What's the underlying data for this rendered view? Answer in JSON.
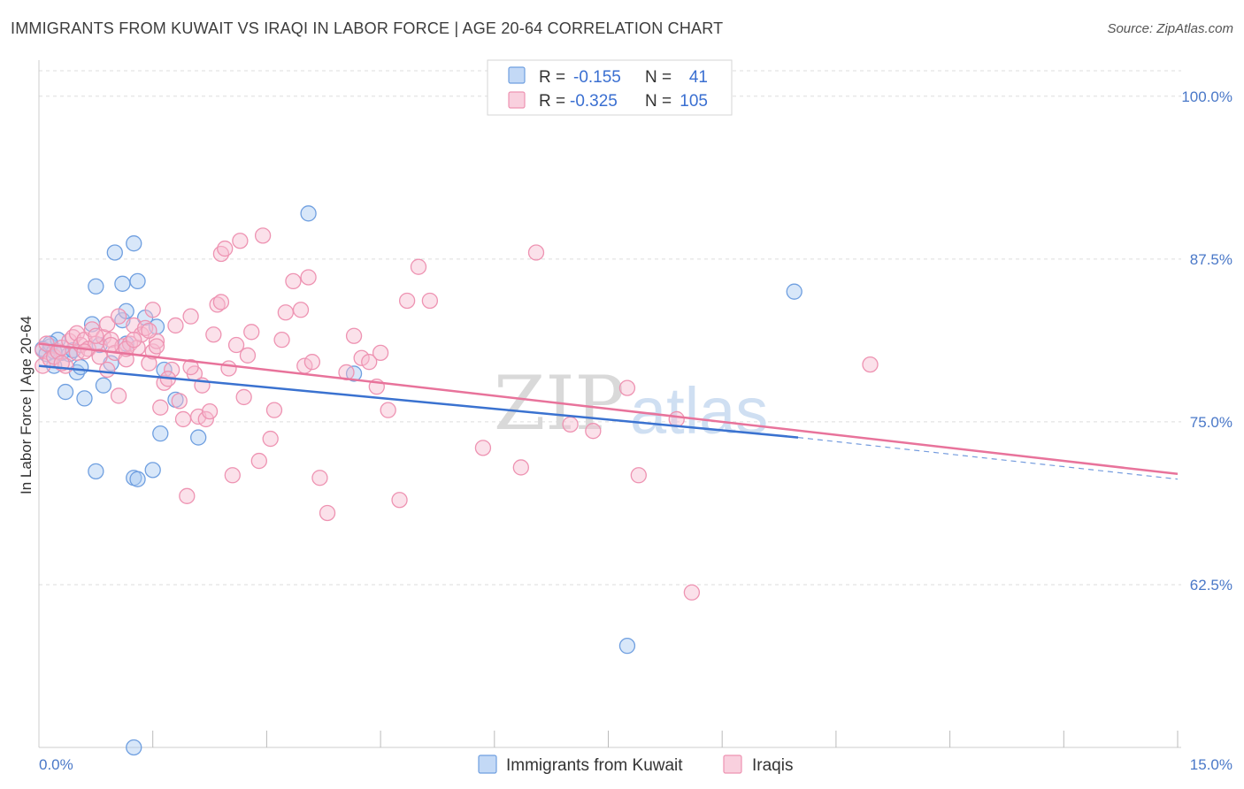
{
  "header": {
    "title": "IMMIGRANTS FROM KUWAIT VS IRAQI IN LABOR FORCE | AGE 20-64 CORRELATION CHART",
    "source": "Source: ZipAtlas.com"
  },
  "watermark": {
    "zip": "ZIP",
    "atlas": "atlas"
  },
  "legend_top": [
    {
      "r_label": "R =",
      "r_value": "-0.155",
      "n_label": "N =",
      "n_value": "41"
    },
    {
      "r_label": "R =",
      "r_value": "-0.325",
      "n_label": "N =",
      "n_value": "105"
    }
  ],
  "colors": {
    "kuwait_fill": "#a9c9f2",
    "kuwait_stroke": "#6f9fe0",
    "kuwait_line": "#3a72d0",
    "iraqi_fill": "#f7bcd0",
    "iraqi_stroke": "#ee93b2",
    "iraqi_line": "#e8739b",
    "grid": "#dddddd",
    "tick_text": "#4a78c8"
  },
  "chart_data": {
    "type": "scatter",
    "xlabel": "",
    "ylabel": "In Labor Force | Age 20-64",
    "xlim": [
      0,
      15
    ],
    "ylim": [
      50,
      102.5
    ],
    "x_tick_labels": [
      "0.0%",
      "15.0%"
    ],
    "y_ticks": [
      62.5,
      75.0,
      87.5,
      100.0
    ],
    "y_tick_labels": [
      "62.5%",
      "75.0%",
      "87.5%",
      "100.0%"
    ],
    "grid": true,
    "legend": "bottom-center",
    "series": [
      {
        "name": "Immigrants from Kuwait",
        "r": -0.155,
        "n": 41,
        "trend": {
          "x0": 0.0,
          "y0": 79.3,
          "x1": 10.0,
          "y1": 73.8,
          "dash_x1": 15.0,
          "dash_y1": 70.6
        },
        "points": [
          [
            0.05,
            80.6
          ],
          [
            0.1,
            80.2
          ],
          [
            0.15,
            80.8
          ],
          [
            0.2,
            79.3
          ],
          [
            0.25,
            81.3
          ],
          [
            0.3,
            80.3
          ],
          [
            0.35,
            77.3
          ],
          [
            0.4,
            80.2
          ],
          [
            0.45,
            80.5
          ],
          [
            0.5,
            78.8
          ],
          [
            0.55,
            79.2
          ],
          [
            0.6,
            76.8
          ],
          [
            0.7,
            82.5
          ],
          [
            0.75,
            71.2
          ],
          [
            0.75,
            85.4
          ],
          [
            0.8,
            80.9
          ],
          [
            0.85,
            77.8
          ],
          [
            0.95,
            79.5
          ],
          [
            1.0,
            88.0
          ],
          [
            1.1,
            85.6
          ],
          [
            1.1,
            82.8
          ],
          [
            1.15,
            83.5
          ],
          [
            1.15,
            81.0
          ],
          [
            1.25,
            70.7
          ],
          [
            1.25,
            88.7
          ],
          [
            1.3,
            70.6
          ],
          [
            1.3,
            85.8
          ],
          [
            1.4,
            83.0
          ],
          [
            1.5,
            71.3
          ],
          [
            1.55,
            82.3
          ],
          [
            1.6,
            74.1
          ],
          [
            1.65,
            79.0
          ],
          [
            1.8,
            76.7
          ],
          [
            2.1,
            73.8
          ],
          [
            3.55,
            91.0
          ],
          [
            4.15,
            78.7
          ],
          [
            7.75,
            57.8
          ],
          [
            9.95,
            85.0
          ],
          [
            1.25,
            50.0
          ],
          [
            0.15,
            81.0
          ],
          [
            0.2,
            80.4
          ]
        ]
      },
      {
        "name": "Iraqis",
        "r": -0.325,
        "n": 105,
        "trend": {
          "x0": 0.0,
          "y0": 81.0,
          "x1": 15.0,
          "y1": 71.0
        },
        "points": [
          [
            0.05,
            79.3
          ],
          [
            0.05,
            80.5
          ],
          [
            0.1,
            81.0
          ],
          [
            0.15,
            79.8
          ],
          [
            0.2,
            80.0
          ],
          [
            0.25,
            80.4
          ],
          [
            0.3,
            80.7
          ],
          [
            0.35,
            79.3
          ],
          [
            0.4,
            81.2
          ],
          [
            0.45,
            81.5
          ],
          [
            0.5,
            81.8
          ],
          [
            0.5,
            80.3
          ],
          [
            0.55,
            80.9
          ],
          [
            0.6,
            81.3
          ],
          [
            0.65,
            80.6
          ],
          [
            0.7,
            82.1
          ],
          [
            0.75,
            81.0
          ],
          [
            0.8,
            80.0
          ],
          [
            0.85,
            81.5
          ],
          [
            0.9,
            82.5
          ],
          [
            0.9,
            79.0
          ],
          [
            0.95,
            81.3
          ],
          [
            1.0,
            80.3
          ],
          [
            1.05,
            83.1
          ],
          [
            1.05,
            77.0
          ],
          [
            1.1,
            80.8
          ],
          [
            1.15,
            79.8
          ],
          [
            1.2,
            81.0
          ],
          [
            1.25,
            82.4
          ],
          [
            1.3,
            80.7
          ],
          [
            1.35,
            81.7
          ],
          [
            1.4,
            82.2
          ],
          [
            1.45,
            79.5
          ],
          [
            1.5,
            80.4
          ],
          [
            1.5,
            83.6
          ],
          [
            1.55,
            81.2
          ],
          [
            1.6,
            76.1
          ],
          [
            1.65,
            78.0
          ],
          [
            1.75,
            79.0
          ],
          [
            1.8,
            82.4
          ],
          [
            1.85,
            76.6
          ],
          [
            1.9,
            75.2
          ],
          [
            1.95,
            69.3
          ],
          [
            2.0,
            83.1
          ],
          [
            2.05,
            78.7
          ],
          [
            2.1,
            75.4
          ],
          [
            2.15,
            77.8
          ],
          [
            2.2,
            75.2
          ],
          [
            2.25,
            75.8
          ],
          [
            2.3,
            81.7
          ],
          [
            2.35,
            84.0
          ],
          [
            2.4,
            87.9
          ],
          [
            2.45,
            88.3
          ],
          [
            2.5,
            79.1
          ],
          [
            2.55,
            70.9
          ],
          [
            2.6,
            80.9
          ],
          [
            2.65,
            88.9
          ],
          [
            2.7,
            76.9
          ],
          [
            2.75,
            80.1
          ],
          [
            2.8,
            81.9
          ],
          [
            2.9,
            72.0
          ],
          [
            2.95,
            89.3
          ],
          [
            3.05,
            73.7
          ],
          [
            3.1,
            75.9
          ],
          [
            3.2,
            81.3
          ],
          [
            3.25,
            83.4
          ],
          [
            3.35,
            85.8
          ],
          [
            3.45,
            83.6
          ],
          [
            3.5,
            79.3
          ],
          [
            3.55,
            86.1
          ],
          [
            3.6,
            79.6
          ],
          [
            3.7,
            70.7
          ],
          [
            3.8,
            68.0
          ],
          [
            4.05,
            78.8
          ],
          [
            4.15,
            81.6
          ],
          [
            4.25,
            79.9
          ],
          [
            4.35,
            79.6
          ],
          [
            4.45,
            77.7
          ],
          [
            4.5,
            80.3
          ],
          [
            4.6,
            75.9
          ],
          [
            4.75,
            69.0
          ],
          [
            4.85,
            84.3
          ],
          [
            5.0,
            86.9
          ],
          [
            5.15,
            84.3
          ],
          [
            5.85,
            73.0
          ],
          [
            6.35,
            71.5
          ],
          [
            6.55,
            88.0
          ],
          [
            7.0,
            74.8
          ],
          [
            7.3,
            74.3
          ],
          [
            7.75,
            77.6
          ],
          [
            7.9,
            70.9
          ],
          [
            8.4,
            75.2
          ],
          [
            8.6,
            61.9
          ],
          [
            10.95,
            79.4
          ],
          [
            0.75,
            81.6
          ],
          [
            0.95,
            80.9
          ],
          [
            1.15,
            80.6
          ],
          [
            1.25,
            81.3
          ],
          [
            1.45,
            82.0
          ],
          [
            1.55,
            80.8
          ],
          [
            1.7,
            78.3
          ],
          [
            2.0,
            79.2
          ],
          [
            2.4,
            84.2
          ],
          [
            0.6,
            80.4
          ],
          [
            0.3,
            79.5
          ]
        ]
      }
    ]
  }
}
